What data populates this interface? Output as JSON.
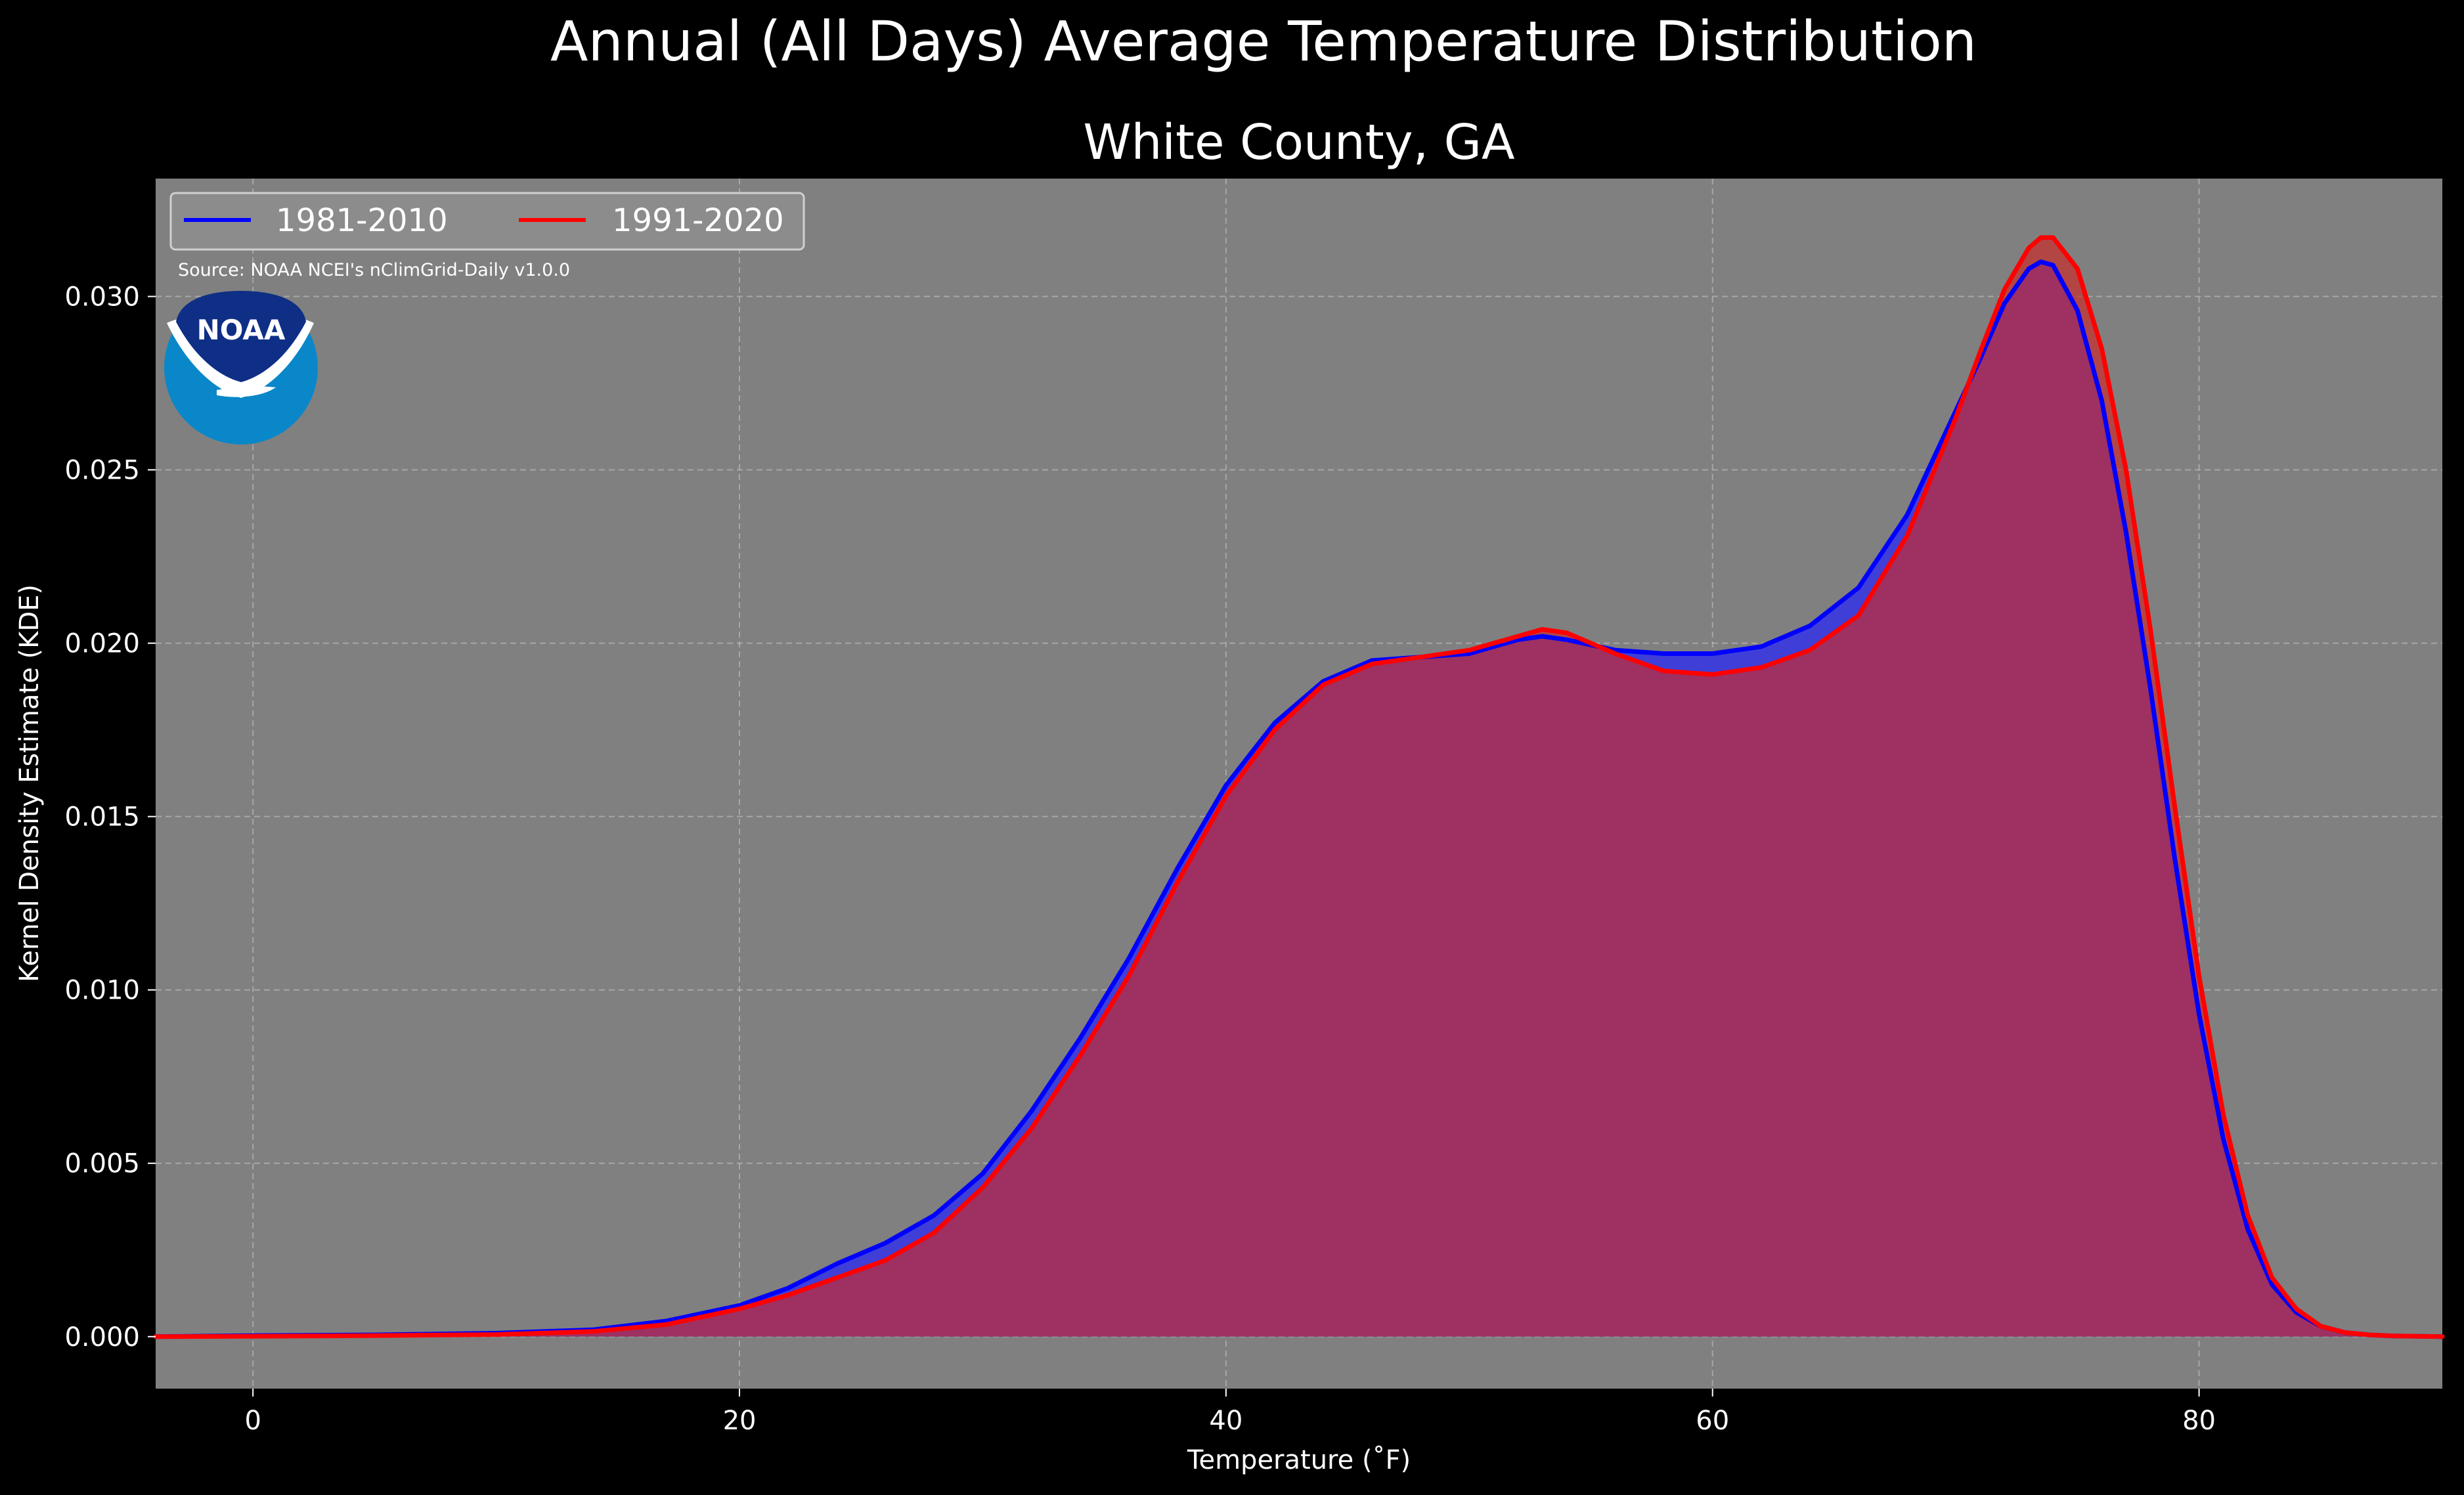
{
  "figure": {
    "title": "Annual (All Days) Average Temperature Distribution",
    "background": "#000000",
    "plot_background": "#808080"
  },
  "chart_data": {
    "type": "area",
    "title": "White County, GA",
    "xlabel": "Temperature (˚F)",
    "ylabel": "Kernel Density Estimate (KDE)",
    "xlim": [
      -4,
      90
    ],
    "ylim": [
      -0.0015,
      0.0334
    ],
    "xticks": [
      0,
      20,
      40,
      60,
      80
    ],
    "xtick_labels": [
      "0",
      "20",
      "40",
      "60",
      "80"
    ],
    "yticks": [
      0.0,
      0.005,
      0.01,
      0.015,
      0.02,
      0.025,
      0.03
    ],
    "ytick_labels": [
      "0.000",
      "0.005",
      "0.010",
      "0.015",
      "0.020",
      "0.025",
      "0.030"
    ],
    "grid": true,
    "legend": {
      "position": "top-left",
      "columns": 2
    },
    "source": "Source: NOAA NCEI's nClimGrid-Daily v1.0.0",
    "x": [
      -4,
      0,
      5,
      10,
      14,
      17,
      20,
      22,
      24,
      26,
      28,
      30,
      32,
      34,
      36,
      38,
      40,
      42,
      44,
      46,
      48,
      50,
      52,
      53,
      54,
      56,
      58,
      60,
      62,
      64,
      66,
      68,
      70,
      71,
      72,
      73,
      73.5,
      74,
      75,
      76,
      77,
      78,
      79,
      80,
      81,
      82,
      83,
      84,
      85,
      86,
      87,
      88,
      90
    ],
    "series": [
      {
        "name": "1981-2010",
        "color": "#0000ff",
        "fill": "#3b3bdc",
        "values": [
          0.0,
          3e-05,
          5e-05,
          0.0001,
          0.0002,
          0.00045,
          0.0009,
          0.0014,
          0.0021,
          0.0027,
          0.0035,
          0.0047,
          0.0065,
          0.0086,
          0.0109,
          0.0135,
          0.0159,
          0.0177,
          0.0189,
          0.0195,
          0.0196,
          0.0197,
          0.0201,
          0.0202,
          0.0201,
          0.0198,
          0.0197,
          0.0197,
          0.0199,
          0.0205,
          0.0216,
          0.0237,
          0.0267,
          0.0282,
          0.0298,
          0.0308,
          0.031,
          0.0309,
          0.0296,
          0.027,
          0.0232,
          0.0187,
          0.0138,
          0.0093,
          0.0057,
          0.0031,
          0.0015,
          0.0007,
          0.0003,
          0.00012,
          5e-05,
          2e-05,
          0.0
        ]
      },
      {
        "name": "1991-2020",
        "color": "#ff0000",
        "fill": "#cc2a2a",
        "values": [
          0.0,
          1e-05,
          3e-05,
          6e-05,
          0.00015,
          0.00035,
          0.0008,
          0.0012,
          0.0017,
          0.0022,
          0.003,
          0.0043,
          0.006,
          0.0081,
          0.0104,
          0.0131,
          0.0156,
          0.0175,
          0.0188,
          0.0194,
          0.0196,
          0.0198,
          0.0202,
          0.0204,
          0.0203,
          0.0197,
          0.0192,
          0.0191,
          0.0193,
          0.0198,
          0.0208,
          0.0231,
          0.0265,
          0.0284,
          0.0302,
          0.0314,
          0.0317,
          0.0317,
          0.0308,
          0.0285,
          0.025,
          0.0204,
          0.0153,
          0.0104,
          0.0064,
          0.0035,
          0.0017,
          0.0008,
          0.0003,
          0.00012,
          5e-05,
          2e-05,
          0.0
        ]
      }
    ]
  },
  "logo": {
    "text": "NOAA",
    "outer_color": "#0a87c9",
    "inner_color": "#0f2f86"
  }
}
